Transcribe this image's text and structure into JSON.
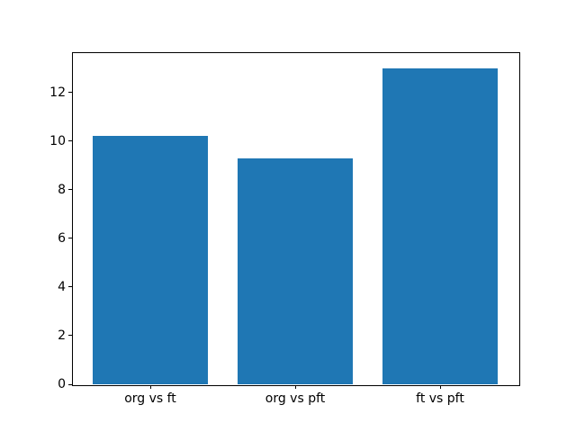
{
  "chart_data": {
    "type": "bar",
    "categories": [
      "org vs ft",
      "org vs pft",
      "ft vs pft"
    ],
    "values": [
      10.2,
      9.3,
      13.0
    ],
    "title": "",
    "xlabel": "",
    "ylabel": "",
    "ylim": [
      0,
      13.65
    ],
    "yticks": [
      0,
      2,
      4,
      6,
      8,
      10,
      12
    ],
    "bar_color": "#1f77b4",
    "axis_color": "#000000",
    "text_color": "#000000",
    "grid": false,
    "legend": false,
    "bar_width_fraction": 0.8
  }
}
